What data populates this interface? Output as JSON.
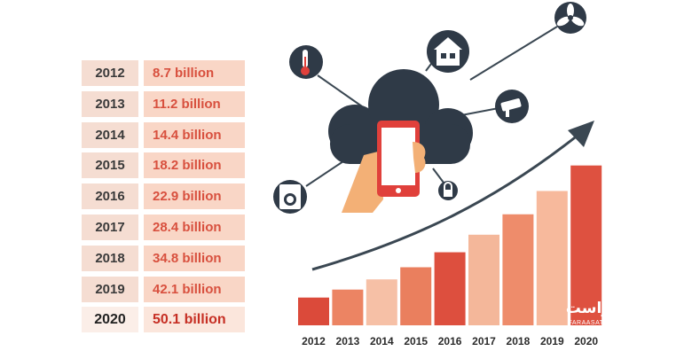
{
  "chart_data": {
    "type": "bar",
    "categories": [
      "2012",
      "2013",
      "2014",
      "2015",
      "2016",
      "2017",
      "2018",
      "2019",
      "2020"
    ],
    "values": [
      8.7,
      11.2,
      14.4,
      18.2,
      22.9,
      28.4,
      34.8,
      42.1,
      50.1
    ],
    "value_labels": [
      "8.7 billion",
      "11.2 billion",
      "14.4 billion",
      "18.2 billion",
      "22.9 billion",
      "28.4 billion",
      "34.8 billion",
      "42.1 billion",
      "50.1 billion"
    ],
    "ylim": [
      0,
      55
    ],
    "grid": false,
    "legend": "none",
    "bar_colors": [
      "#db4a3a",
      "#ec8463",
      "#f6c0a6",
      "#ea7f5e",
      "#dd4f3e",
      "#f4b79a",
      "#ee8c6b",
      "#f7b99c",
      "#de5140"
    ]
  },
  "colors": {
    "cloud": "#2f3a47",
    "arrow": "#3a4752",
    "phone_case": "#e0403b",
    "phone_screen": "#ffffff",
    "hand": "#f3b076",
    "icon_circle": "#2f3a47"
  },
  "icons": [
    "thermometer-icon",
    "house-icon",
    "fan-icon",
    "security-camera-icon",
    "washing-machine-icon",
    "lock-icon",
    "smartphone-icon",
    "cloud-icon"
  ],
  "watermark": {
    "text": "فراست",
    "sub": "FARAASAT.COM"
  }
}
